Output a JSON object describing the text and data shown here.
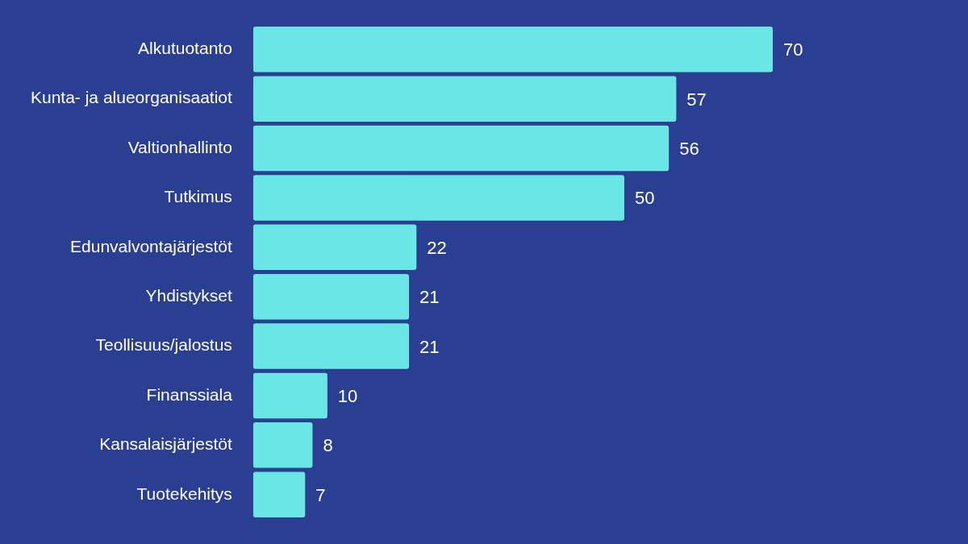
{
  "chart_data": {
    "type": "bar",
    "orientation": "horizontal",
    "categories": [
      "Alkutuotanto",
      "Kunta- ja alueorganisaatiot",
      "Valtionhallinto",
      "Tutkimus",
      "Edunvalvontajärjestöt",
      "Yhdistykset",
      "Teollisuus/jalostus",
      "Finanssiala",
      "Kansalaisjärjestöt",
      "Tuotekehitys"
    ],
    "values": [
      70,
      57,
      56,
      50,
      22,
      21,
      21,
      10,
      8,
      7
    ],
    "color": "#6ae6e6",
    "data_labels": true,
    "grid": false,
    "legend": false,
    "tick_labels": "y"
  }
}
